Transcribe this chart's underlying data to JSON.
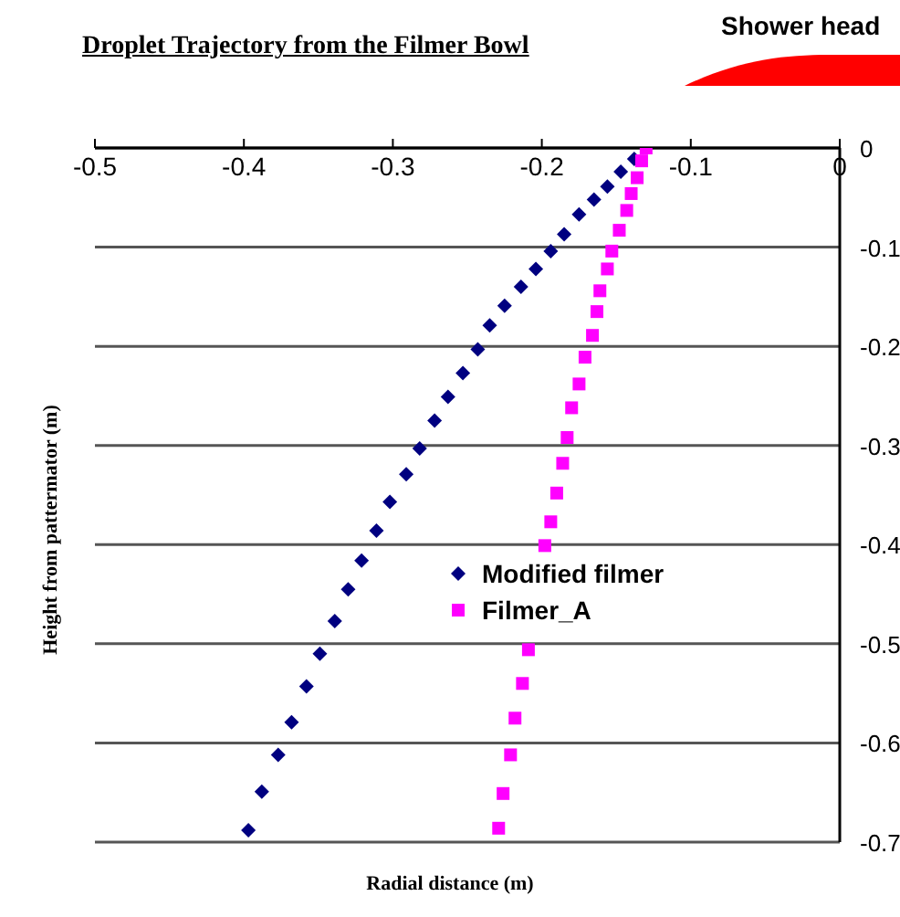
{
  "chart_data": {
    "type": "scatter",
    "title": "Droplet Trajectory from the Filmer Bowl",
    "xlabel": "Radial distance (m)",
    "ylabel": "Height from pattermator (m)",
    "annotations": [
      "Shower head"
    ],
    "xlim": [
      -0.5,
      0
    ],
    "xticks": [
      -0.5,
      -0.4,
      -0.3,
      -0.2,
      -0.1,
      0
    ],
    "ylim": [
      -0.7,
      0
    ],
    "yticks": [
      0,
      -0.1,
      -0.2,
      -0.3,
      -0.4,
      -0.5,
      -0.6,
      -0.7
    ],
    "grid": "y",
    "legend": "right",
    "series": [
      {
        "name": "Modified filmer",
        "color": "#000080",
        "marker": "diamond",
        "x": [
          -0.138,
          -0.147,
          -0.156,
          -0.165,
          -0.175,
          -0.185,
          -0.194,
          -0.204,
          -0.214,
          -0.225,
          -0.235,
          -0.243,
          -0.253,
          -0.263,
          -0.272,
          -0.282,
          -0.291,
          -0.302,
          -0.311,
          -0.321,
          -0.33,
          -0.339,
          -0.349,
          -0.358,
          -0.368,
          -0.377,
          -0.388,
          -0.397
        ],
        "values": [
          -0.011,
          -0.024,
          -0.039,
          -0.052,
          -0.067,
          -0.087,
          -0.104,
          -0.122,
          -0.14,
          -0.159,
          -0.179,
          -0.203,
          -0.227,
          -0.251,
          -0.275,
          -0.303,
          -0.329,
          -0.357,
          -0.386,
          -0.416,
          -0.445,
          -0.477,
          -0.51,
          -0.543,
          -0.579,
          -0.612,
          -0.649,
          -0.688
        ]
      },
      {
        "name": "Filmer_A",
        "color": "#ff00ff",
        "marker": "square",
        "x": [
          -0.13,
          -0.133,
          -0.136,
          -0.14,
          -0.143,
          -0.148,
          -0.153,
          -0.156,
          -0.161,
          -0.163,
          -0.166,
          -0.171,
          -0.175,
          -0.18,
          -0.183,
          -0.186,
          -0.19,
          -0.194,
          -0.198,
          -0.209,
          -0.213,
          -0.218,
          -0.221,
          -0.226,
          -0.229
        ],
        "values": [
          0,
          -0.013,
          -0.03,
          -0.046,
          -0.063,
          -0.083,
          -0.104,
          -0.122,
          -0.144,
          -0.165,
          -0.189,
          -0.211,
          -0.238,
          -0.262,
          -0.292,
          -0.318,
          -0.348,
          -0.377,
          -0.401,
          -0.506,
          -0.54,
          -0.575,
          -0.612,
          -0.651,
          -0.686
        ]
      }
    ]
  }
}
